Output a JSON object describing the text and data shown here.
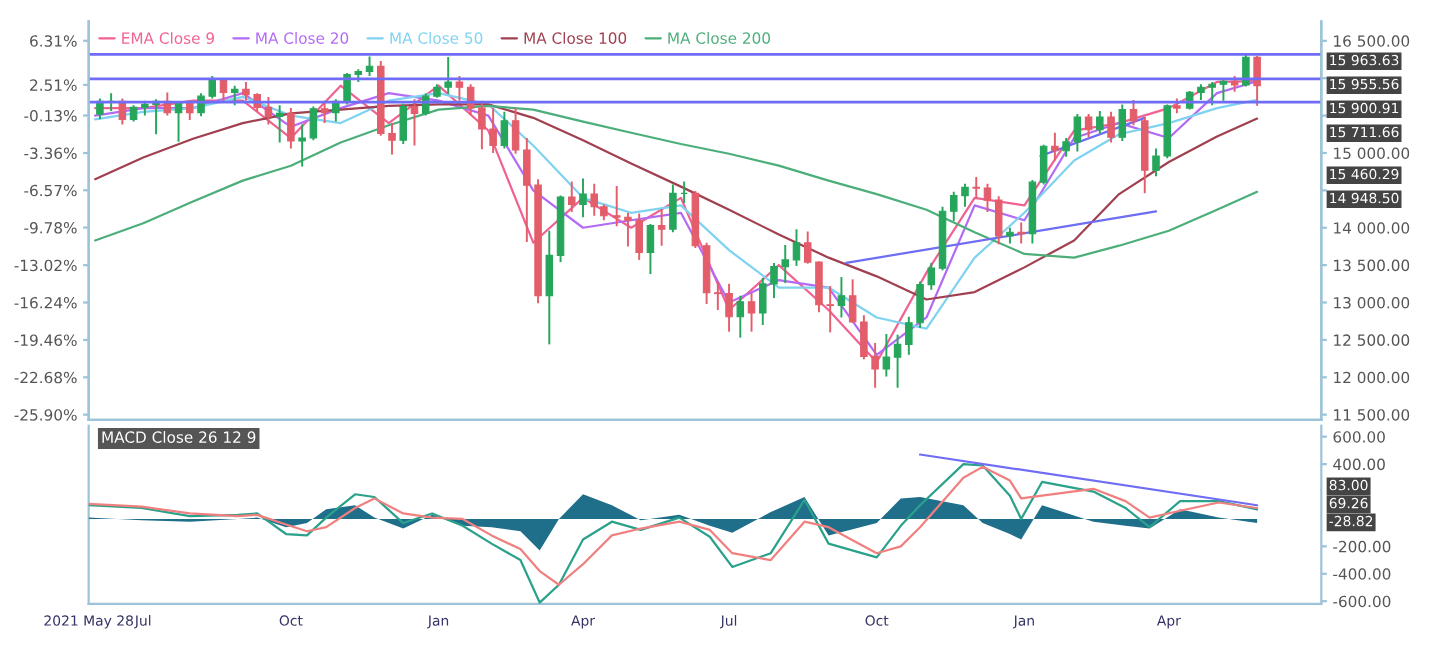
{
  "chart_data": [
    {
      "type": "candlestick",
      "x": [
        "2021-06-04",
        "2021-06-11",
        "2021-06-18",
        "2021-06-25",
        "2021-07-02",
        "2021-07-09",
        "2021-07-16",
        "2021-07-23",
        "2021-07-30",
        "2021-08-06",
        "2021-08-13",
        "2021-08-20",
        "2021-08-27",
        "2021-09-03",
        "2021-09-10",
        "2021-09-17",
        "2021-09-24",
        "2021-10-01",
        "2021-10-08",
        "2021-10-15",
        "2021-10-22",
        "2021-10-29",
        "2021-11-05",
        "2021-11-12",
        "2021-11-19",
        "2021-11-26",
        "2021-12-03",
        "2021-12-10",
        "2021-12-17",
        "2021-12-24",
        "2021-12-31",
        "2022-01-07",
        "2022-01-14",
        "2022-01-21",
        "2022-01-28",
        "2022-02-04",
        "2022-02-11",
        "2022-02-18",
        "2022-02-25",
        "2022-03-04",
        "2022-03-11",
        "2022-03-18",
        "2022-03-25",
        "2022-04-01",
        "2022-04-08",
        "2022-04-14",
        "2022-04-22",
        "2022-04-29",
        "2022-05-06",
        "2022-05-13",
        "2022-05-20",
        "2022-05-27",
        "2022-06-03",
        "2022-06-10",
        "2022-06-17",
        "2022-06-24",
        "2022-07-01",
        "2022-07-08",
        "2022-07-15",
        "2022-07-22",
        "2022-07-29",
        "2022-08-05",
        "2022-08-12",
        "2022-08-19",
        "2022-08-26",
        "2022-09-02",
        "2022-09-09",
        "2022-09-16",
        "2022-09-23",
        "2022-09-30",
        "2022-10-07",
        "2022-10-14",
        "2022-10-21",
        "2022-10-28",
        "2022-11-04",
        "2022-11-11",
        "2022-11-18",
        "2022-11-25",
        "2022-12-02",
        "2022-12-09",
        "2022-12-16",
        "2022-12-23",
        "2022-12-30",
        "2023-01-06",
        "2023-01-13",
        "2023-01-20",
        "2023-01-27",
        "2023-02-03",
        "2023-02-10",
        "2023-02-17",
        "2023-02-24",
        "2023-03-03",
        "2023-03-10",
        "2023-03-17",
        "2023-03-24",
        "2023-03-31",
        "2023-04-06",
        "2023-04-14",
        "2023-04-21",
        "2023-04-28",
        "2023-05-05",
        "2023-05-12",
        "2023-05-19",
        "2023-05-26"
      ],
      "ohlc": [
        [
          15520,
          15730,
          15450,
          15690
        ],
        [
          15690,
          15800,
          15560,
          15690
        ],
        [
          15690,
          15730,
          15380,
          15450
        ],
        [
          15450,
          15640,
          15420,
          15610
        ],
        [
          15610,
          15700,
          15500,
          15650
        ],
        [
          15650,
          15720,
          15250,
          15690
        ],
        [
          15690,
          15810,
          15500,
          15540
        ],
        [
          15540,
          15680,
          15150,
          15670
        ],
        [
          15670,
          15700,
          15440,
          15540
        ],
        [
          15540,
          15800,
          15490,
          15760
        ],
        [
          15760,
          16030,
          15730,
          15980
        ],
        [
          15980,
          16000,
          15690,
          15810
        ],
        [
          15810,
          15900,
          15640,
          15850
        ],
        [
          15850,
          15950,
          15700,
          15780
        ],
        [
          15780,
          15800,
          15550,
          15610
        ],
        [
          15610,
          15750,
          15380,
          15490
        ],
        [
          15490,
          15640,
          15140,
          15530
        ],
        [
          15530,
          15600,
          15060,
          15160
        ],
        [
          15160,
          15380,
          14820,
          15200
        ],
        [
          15200,
          15620,
          15170,
          15590
        ],
        [
          15590,
          15700,
          15400,
          15540
        ],
        [
          15540,
          15720,
          15420,
          15690
        ],
        [
          15690,
          16070,
          15650,
          16050
        ],
        [
          16050,
          16120,
          15950,
          16090
        ],
        [
          16090,
          16290,
          16030,
          16160
        ],
        [
          16160,
          16230,
          15230,
          15260
        ],
        [
          15260,
          15400,
          14980,
          15170
        ],
        [
          15170,
          15660,
          15120,
          15620
        ],
        [
          15620,
          15720,
          15100,
          15530
        ],
        [
          15530,
          15800,
          15500,
          15760
        ],
        [
          15760,
          15920,
          15740,
          15880
        ],
        [
          15880,
          16285,
          15790,
          15950
        ],
        [
          15950,
          16030,
          15700,
          15880
        ],
        [
          15880,
          15920,
          15510,
          15600
        ],
        [
          15600,
          15700,
          15050,
          15320
        ],
        [
          15320,
          15600,
          15000,
          15100
        ],
        [
          15100,
          15550,
          15060,
          15430
        ],
        [
          15430,
          15600,
          14990,
          15040
        ],
        [
          15040,
          15200,
          13810,
          14570
        ],
        [
          14570,
          14650,
          12990,
          13090
        ],
        [
          13090,
          13960,
          12440,
          13630
        ],
        [
          13630,
          14430,
          13540,
          14410
        ],
        [
          14410,
          14620,
          14210,
          14310
        ],
        [
          14310,
          14660,
          14140,
          14450
        ],
        [
          14450,
          14590,
          14160,
          14280
        ],
        [
          14280,
          14310,
          14100,
          14160
        ],
        [
          14160,
          14560,
          14020,
          14140
        ],
        [
          14140,
          14200,
          13750,
          14100
        ],
        [
          14100,
          14190,
          13570,
          13670
        ],
        [
          13670,
          14050,
          13380,
          14030
        ],
        [
          14030,
          14250,
          13760,
          13980
        ],
        [
          13980,
          14580,
          13940,
          14460
        ],
        [
          14460,
          14620,
          14330,
          14460
        ],
        [
          14460,
          14490,
          13730,
          13760
        ],
        [
          13760,
          13800,
          12980,
          13130
        ],
        [
          13130,
          13280,
          12900,
          13120
        ],
        [
          13120,
          13250,
          12610,
          12810
        ],
        [
          12810,
          13090,
          12530,
          13010
        ],
        [
          13010,
          13130,
          12610,
          12860
        ],
        [
          12860,
          13330,
          12700,
          13250
        ],
        [
          13250,
          13530,
          13060,
          13480
        ],
        [
          13480,
          13770,
          13260,
          13570
        ],
        [
          13570,
          13980,
          13490,
          13800
        ],
        [
          13800,
          13950,
          13520,
          13540
        ],
        [
          13540,
          13550,
          12870,
          12970
        ],
        [
          12970,
          13220,
          12600,
          12960
        ],
        [
          12960,
          13340,
          12800,
          13090
        ],
        [
          13090,
          13310,
          12730,
          12740
        ],
        [
          12740,
          12830,
          12240,
          12280
        ],
        [
          12280,
          12460,
          11860,
          12110
        ],
        [
          12110,
          12580,
          12010,
          12270
        ],
        [
          12270,
          12570,
          11860,
          12440
        ],
        [
          12440,
          12810,
          12300,
          12730
        ],
        [
          12730,
          13280,
          12660,
          13240
        ],
        [
          13240,
          13530,
          13170,
          13460
        ],
        [
          13460,
          14280,
          13430,
          14220
        ],
        [
          14220,
          14480,
          14090,
          14430
        ],
        [
          14430,
          14590,
          14280,
          14540
        ],
        [
          14540,
          14680,
          14390,
          14530
        ],
        [
          14530,
          14590,
          14210,
          14370
        ],
        [
          14370,
          14420,
          13780,
          13890
        ],
        [
          13890,
          14000,
          13790,
          13940
        ],
        [
          13940,
          14070,
          13790,
          13920
        ],
        [
          13920,
          14640,
          13790,
          14610
        ],
        [
          14610,
          15110,
          14580,
          15090
        ],
        [
          15090,
          15270,
          14900,
          15030
        ],
        [
          15030,
          15200,
          14950,
          15150
        ],
        [
          15150,
          15520,
          15020,
          15480
        ],
        [
          15480,
          15520,
          15210,
          15310
        ],
        [
          15310,
          15560,
          15260,
          15480
        ],
        [
          15480,
          15550,
          15140,
          15210
        ],
        [
          15210,
          15650,
          15160,
          15580
        ],
        [
          15580,
          15710,
          15370,
          15430
        ],
        [
          15430,
          15480,
          14460,
          14770
        ],
        [
          14770,
          15060,
          14690,
          14960
        ],
        [
          14960,
          15650,
          14930,
          15630
        ],
        [
          15630,
          15730,
          15530,
          15600
        ],
        [
          15600,
          15830,
          15580,
          15810
        ],
        [
          15810,
          15920,
          15710,
          15880
        ],
        [
          15880,
          15950,
          15640,
          15920
        ],
        [
          15920,
          16000,
          15700,
          15960
        ],
        [
          15960,
          16030,
          15820,
          15910
        ],
        [
          15910,
          16330,
          15890,
          16280
        ],
        [
          16280,
          16300,
          15630,
          15900.91
        ]
      ],
      "series": [
        {
          "type": "line",
          "name": "EMA Close 9",
          "color": "#f06292",
          "x": [
            "2021-06-01",
            "2021-07-01",
            "2021-08-01",
            "2021-09-01",
            "2021-10-01",
            "2021-11-01",
            "2021-12-01",
            "2022-01-01",
            "2022-02-01",
            "2022-03-01",
            "2022-04-01",
            "2022-05-01",
            "2022-06-01",
            "2022-07-01",
            "2022-08-01",
            "2022-09-01",
            "2022-10-01",
            "2022-11-01",
            "2022-12-01",
            "2023-01-01",
            "2023-02-01",
            "2023-03-01",
            "2023-04-01",
            "2023-05-01",
            "2023-05-26"
          ],
          "values": [
            15600,
            15600,
            15700,
            15700,
            15200,
            15900,
            15400,
            15900,
            15300,
            13800,
            14400,
            14000,
            14400,
            12900,
            13500,
            12900,
            12200,
            13400,
            14400,
            14300,
            15300,
            15400,
            15600,
            15950,
            15960
          ]
        },
        {
          "type": "line",
          "name": "MA Close 20",
          "color": "#b36bf5",
          "x": [
            "2021-06-01",
            "2021-07-01",
            "2021-08-01",
            "2021-09-01",
            "2021-10-01",
            "2021-11-01",
            "2021-12-01",
            "2022-01-01",
            "2022-02-01",
            "2022-03-01",
            "2022-04-01",
            "2022-05-01",
            "2022-06-01",
            "2022-07-01",
            "2022-08-01",
            "2022-09-01",
            "2022-10-01",
            "2022-11-01",
            "2022-12-01",
            "2023-01-01",
            "2023-02-01",
            "2023-03-01",
            "2023-04-01",
            "2023-05-01",
            "2023-05-26"
          ],
          "values": [
            15500,
            15600,
            15600,
            15800,
            15350,
            15600,
            15800,
            15700,
            15500,
            14500,
            14000,
            14100,
            14200,
            13000,
            13300,
            13200,
            12300,
            12800,
            14300,
            14100,
            15200,
            15400,
            15200,
            15800,
            15960
          ]
        },
        {
          "type": "line",
          "name": "MA Close 50",
          "color": "#7fd3f0",
          "x": [
            "2021-06-01",
            "2021-07-01",
            "2021-08-01",
            "2021-09-01",
            "2021-10-01",
            "2021-11-01",
            "2021-12-01",
            "2022-01-01",
            "2022-02-01",
            "2022-03-01",
            "2022-04-01",
            "2022-05-01",
            "2022-06-01",
            "2022-07-01",
            "2022-08-01",
            "2022-09-01",
            "2022-10-01",
            "2022-11-01",
            "2022-12-01",
            "2023-01-01",
            "2023-02-01",
            "2023-03-01",
            "2023-04-01",
            "2023-05-01",
            "2023-05-26"
          ],
          "values": [
            15450,
            15550,
            15600,
            15750,
            15500,
            15400,
            15700,
            15800,
            15650,
            15100,
            14400,
            14200,
            14300,
            13700,
            13200,
            13200,
            12800,
            12650,
            13600,
            14200,
            14900,
            15250,
            15400,
            15600,
            15710
          ]
        },
        {
          "type": "line",
          "name": "MA Close 100",
          "color": "#a04050",
          "x": [
            "2021-06-01",
            "2021-07-01",
            "2021-08-01",
            "2021-09-01",
            "2021-10-01",
            "2021-11-01",
            "2021-12-01",
            "2022-01-01",
            "2022-02-01",
            "2022-03-01",
            "2022-04-01",
            "2022-05-01",
            "2022-06-01",
            "2022-07-01",
            "2022-08-01",
            "2022-09-01",
            "2022-10-01",
            "2022-11-01",
            "2022-12-01",
            "2023-01-01",
            "2023-02-01",
            "2023-03-01",
            "2023-04-01",
            "2023-05-01",
            "2023-05-26"
          ],
          "values": [
            14650,
            14940,
            15190,
            15400,
            15530,
            15580,
            15630,
            15650,
            15650,
            15470,
            15170,
            14860,
            14550,
            14240,
            13910,
            13600,
            13350,
            13040,
            13140,
            13470,
            13830,
            14450,
            14880,
            15220,
            15460
          ]
        },
        {
          "type": "line",
          "name": "MA Close 200",
          "color": "#4caf7a",
          "x": [
            "2021-06-01",
            "2021-07-01",
            "2021-08-01",
            "2021-09-01",
            "2021-10-01",
            "2021-11-01",
            "2021-12-01",
            "2022-01-01",
            "2022-02-01",
            "2022-03-01",
            "2022-04-01",
            "2022-05-01",
            "2022-06-01",
            "2022-07-01",
            "2022-08-01",
            "2022-09-01",
            "2022-10-01",
            "2022-11-01",
            "2022-12-01",
            "2023-01-01",
            "2023-02-01",
            "2023-03-01",
            "2023-04-01",
            "2023-05-01",
            "2023-05-26"
          ],
          "values": [
            13830,
            14060,
            14350,
            14630,
            14830,
            15140,
            15370,
            15580,
            15630,
            15580,
            15420,
            15270,
            15120,
            14990,
            14830,
            14630,
            14450,
            14240,
            13940,
            13650,
            13600,
            13760,
            13960,
            14240,
            14480
          ]
        },
        {
          "type": "line",
          "color": "#6f6cf5",
          "x": [
            "2022-09-12",
            "2023-03-24"
          ],
          "values": [
            13530,
            14220
          ]
        },
        {
          "type": "line",
          "color": "#6f6cf5",
          "x": [
            "2023-01-11",
            "2023-03-17"
          ],
          "values": [
            14960,
            15470
          ]
        }
      ],
      "ref_lines": [
        {
          "axis": "y",
          "value": 16320,
          "color": "#6f6cf5"
        },
        {
          "axis": "y",
          "value": 15990,
          "color": "#6f6cf5"
        },
        {
          "axis": "y",
          "value": 15680,
          "color": "#6f6cf5"
        }
      ],
      "annotations": [
        "15 963.63",
        "15 955.56",
        "15 900.91",
        "15 711.66",
        "15 460.29",
        "14 948.50"
      ],
      "xlim": [
        "2021-05-28",
        "2023-07-05"
      ],
      "ylim": [
        11430,
        16760
      ],
      "yticks": [
        {
          "value": 11500,
          "label": "11 500.00"
        },
        {
          "value": 12000,
          "label": "12 000.00"
        },
        {
          "value": 12500,
          "label": "12 500.00"
        },
        {
          "value": 13000,
          "label": "13 000.00"
        },
        {
          "value": 13500,
          "label": "13 500.00"
        },
        {
          "value": 14000,
          "label": "14 000.00"
        },
        {
          "value": 14500,
          "label": null
        },
        {
          "value": 15000,
          "label": "15 000.00"
        },
        {
          "value": 15500,
          "label": null
        },
        {
          "value": 16000,
          "label": null
        },
        {
          "value": 16500,
          "label": "16 500.00"
        }
      ],
      "y2lim": [
        -26.35,
        7.98
      ],
      "y2ticks": [
        {
          "value": 6.31,
          "label": "6.31%"
        },
        {
          "value": 2.51,
          "label": "2.51%"
        },
        {
          "value": -0.13,
          "label": "-0.13%"
        },
        {
          "value": -3.36,
          "label": "-3.36%"
        },
        {
          "value": -6.57,
          "label": "-6.57%"
        },
        {
          "value": -9.78,
          "label": "-9.78%"
        },
        {
          "value": -13.02,
          "label": "-13.02%"
        },
        {
          "value": -16.24,
          "label": "-16.24%"
        },
        {
          "value": -19.46,
          "label": "-19.46%"
        },
        {
          "value": -22.68,
          "label": "-22.68%"
        },
        {
          "value": -25.9,
          "label": "-25.90%"
        }
      ],
      "tick_labels": "y",
      "legend": "top left",
      "grid": false
    },
    {
      "type": "line",
      "title": "MACD Close 26 12 9",
      "series": [
        {
          "type": "line",
          "color": "#2aa18a",
          "x": [
            "2021-05-28",
            "2021-06-30",
            "2021-07-30",
            "2021-08-29",
            "2021-09-10",
            "2021-09-28",
            "2021-10-11",
            "2021-10-23",
            "2021-11-10",
            "2021-11-22",
            "2021-12-10",
            "2021-12-28",
            "2022-01-16",
            "2022-02-03",
            "2022-02-21",
            "2022-03-05",
            "2022-03-17",
            "2022-04-01",
            "2022-04-19",
            "2022-05-07",
            "2022-05-31",
            "2022-06-19",
            "2022-07-03",
            "2022-07-27",
            "2022-08-17",
            "2022-09-01",
            "2022-10-01",
            "2022-10-16",
            "2022-10-28",
            "2022-11-24",
            "2022-12-06",
            "2022-12-23",
            "2022-12-30",
            "2023-01-12",
            "2023-02-13",
            "2023-03-05",
            "2023-03-20",
            "2023-04-08",
            "2023-05-02",
            "2023-05-26"
          ],
          "values": [
            100,
            80,
            20,
            30,
            40,
            -110,
            -120,
            10,
            180,
            160,
            -30,
            40,
            -50,
            -180,
            -300,
            -610,
            -480,
            -150,
            -20,
            -80,
            10,
            -130,
            -350,
            -250,
            140,
            -180,
            -280,
            -50,
            100,
            400,
            390,
            170,
            0,
            270,
            200,
            80,
            -60,
            130,
            130,
            70
          ]
        },
        {
          "type": "line",
          "color": "#f08080",
          "x": [
            "2021-05-28",
            "2021-06-30",
            "2021-07-30",
            "2021-08-29",
            "2021-09-10",
            "2021-09-28",
            "2021-10-11",
            "2021-10-23",
            "2021-11-10",
            "2021-11-22",
            "2021-12-10",
            "2021-12-28",
            "2022-01-16",
            "2022-02-03",
            "2022-02-21",
            "2022-03-05",
            "2022-03-17",
            "2022-04-01",
            "2022-04-19",
            "2022-05-07",
            "2022-05-31",
            "2022-06-19",
            "2022-07-03",
            "2022-07-27",
            "2022-08-17",
            "2022-09-01",
            "2022-10-01",
            "2022-10-16",
            "2022-10-28",
            "2022-11-24",
            "2022-12-06",
            "2022-12-23",
            "2022-12-30",
            "2023-01-12",
            "2023-02-13",
            "2023-03-05",
            "2023-03-20",
            "2023-04-08",
            "2023-05-02",
            "2023-05-26"
          ],
          "values": [
            110,
            90,
            40,
            20,
            30,
            -40,
            -90,
            -60,
            80,
            150,
            40,
            10,
            0,
            -120,
            -220,
            -380,
            -480,
            -330,
            -120,
            -70,
            -20,
            -80,
            -250,
            -300,
            -20,
            -60,
            -250,
            -200,
            -60,
            300,
            380,
            280,
            150,
            170,
            220,
            130,
            10,
            60,
            120,
            80
          ]
        },
        {
          "type": "area",
          "color": "#1f6f8b",
          "x": [
            "2021-05-28",
            "2021-06-30",
            "2021-07-30",
            "2021-08-29",
            "2021-09-10",
            "2021-09-28",
            "2021-10-11",
            "2021-10-23",
            "2021-11-10",
            "2021-11-22",
            "2021-12-10",
            "2021-12-28",
            "2022-01-16",
            "2022-02-03",
            "2022-02-21",
            "2022-03-05",
            "2022-03-17",
            "2022-04-01",
            "2022-04-19",
            "2022-05-07",
            "2022-05-31",
            "2022-06-19",
            "2022-07-03",
            "2022-07-27",
            "2022-08-17",
            "2022-09-01",
            "2022-10-01",
            "2022-10-16",
            "2022-10-28",
            "2022-11-24",
            "2022-12-06",
            "2022-12-23",
            "2022-12-30",
            "2023-01-12",
            "2023-02-13",
            "2023-03-05",
            "2023-03-20",
            "2023-04-08",
            "2023-05-02",
            "2023-05-26"
          ],
          "values": [
            10,
            -10,
            -20,
            0,
            10,
            -60,
            -30,
            70,
            100,
            10,
            -70,
            30,
            -50,
            -60,
            -90,
            -230,
            0,
            180,
            100,
            -10,
            30,
            -50,
            -100,
            50,
            160,
            -120,
            -30,
            150,
            160,
            100,
            -30,
            -110,
            -150,
            100,
            -20,
            -50,
            -70,
            70,
            10,
            -30
          ]
        },
        {
          "type": "line",
          "color": "#6f6cf5",
          "x": [
            "2022-10-28",
            "2023-05-26"
          ],
          "values": [
            470,
            100
          ]
        }
      ],
      "annotations": [
        "83.00",
        "69.26",
        "-28.82"
      ],
      "xlim": [
        "2021-05-28",
        "2023-07-05"
      ],
      "xticks": [
        {
          "value": "2021-05-28",
          "label": "2021 May 28"
        },
        {
          "value": "2021-07-01",
          "label": "Jul"
        },
        {
          "value": "2021-10-01",
          "label": "Oct"
        },
        {
          "value": "2022-01-01",
          "label": "Jan"
        },
        {
          "value": "2022-04-01",
          "label": "Apr"
        },
        {
          "value": "2022-07-01",
          "label": "Jul"
        },
        {
          "value": "2022-10-01",
          "label": "Oct"
        },
        {
          "value": "2023-01-01",
          "label": "Jan"
        },
        {
          "value": "2023-04-01",
          "label": "Apr"
        }
      ],
      "ylim": [
        -620,
        680
      ],
      "yticks": [
        {
          "value": -600,
          "label": "-600.00"
        },
        {
          "value": -400,
          "label": "-400.00"
        },
        {
          "value": -200,
          "label": "-200.00"
        },
        {
          "value": 400,
          "label": "400.00"
        },
        {
          "value": 600,
          "label": "600.00"
        }
      ],
      "grid": false
    }
  ]
}
